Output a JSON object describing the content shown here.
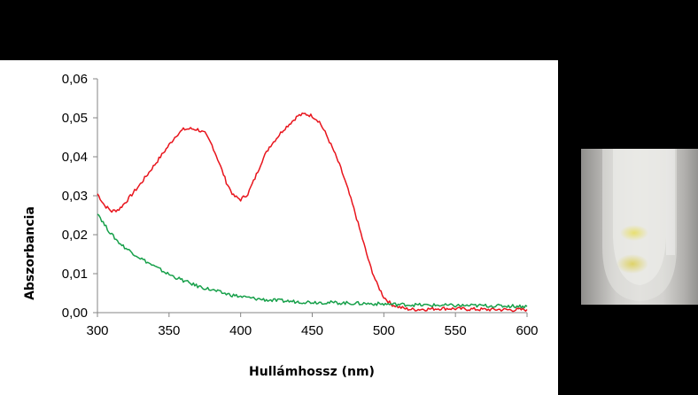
{
  "chart_data": {
    "type": "line",
    "title": "",
    "xlabel": "Hullámhossz (nm)",
    "ylabel": "Abszorbancia",
    "xlim": [
      300,
      600
    ],
    "ylim": [
      0,
      0.06
    ],
    "x_ticks": [
      300,
      350,
      400,
      450,
      500,
      550,
      600
    ],
    "x_tick_labels": [
      "300",
      "350",
      "400",
      "450",
      "500",
      "550",
      "600"
    ],
    "y_ticks": [
      0,
      0.01,
      0.02,
      0.03,
      0.04,
      0.05,
      0.06
    ],
    "y_tick_labels": [
      "0,00",
      "0,01",
      "0,02",
      "0,03",
      "0,04",
      "0,05",
      "0,06"
    ],
    "grid": false,
    "legend": "none",
    "series": [
      {
        "color": "#e8141c",
        "x": [
          300,
          305,
          310,
          315,
          320,
          330,
          340,
          350,
          355,
          360,
          365,
          370,
          375,
          380,
          385,
          390,
          395,
          400,
          405,
          410,
          415,
          420,
          430,
          440,
          445,
          450,
          455,
          460,
          465,
          470,
          475,
          480,
          485,
          490,
          495,
          500,
          505,
          510,
          515,
          520,
          530,
          540,
          550,
          560,
          570,
          580,
          590,
          600
        ],
        "y": [
          0.0305,
          0.0275,
          0.026,
          0.0265,
          0.0285,
          0.033,
          0.038,
          0.043,
          0.0455,
          0.047,
          0.0472,
          0.047,
          0.046,
          0.043,
          0.0385,
          0.0335,
          0.03,
          0.029,
          0.0305,
          0.0345,
          0.039,
          0.0425,
          0.047,
          0.0505,
          0.051,
          0.0505,
          0.049,
          0.0455,
          0.0415,
          0.037,
          0.0315,
          0.0255,
          0.019,
          0.0125,
          0.0075,
          0.004,
          0.0022,
          0.0015,
          0.001,
          0.0008,
          0.0009,
          0.0011,
          0.001,
          0.0009,
          0.0008,
          0.0008,
          0.0007,
          0.0008
        ]
      },
      {
        "color": "#17a04a",
        "x": [
          300,
          305,
          310,
          315,
          320,
          330,
          340,
          350,
          360,
          370,
          380,
          390,
          400,
          410,
          420,
          430,
          440,
          450,
          460,
          470,
          480,
          490,
          500,
          510,
          520,
          530,
          540,
          550,
          560,
          570,
          580,
          590,
          600
        ],
        "y": [
          0.0257,
          0.0225,
          0.02,
          0.018,
          0.0165,
          0.014,
          0.0118,
          0.0098,
          0.0082,
          0.0068,
          0.0058,
          0.0048,
          0.0041,
          0.0036,
          0.0032,
          0.003,
          0.0028,
          0.0027,
          0.0026,
          0.0025,
          0.0024,
          0.0023,
          0.0022,
          0.0021,
          0.002,
          0.0019,
          0.0019,
          0.0018,
          0.0018,
          0.0018,
          0.0017,
          0.0017,
          0.0016
        ]
      }
    ]
  },
  "photo": {
    "icon": "test-tube-photo"
  }
}
